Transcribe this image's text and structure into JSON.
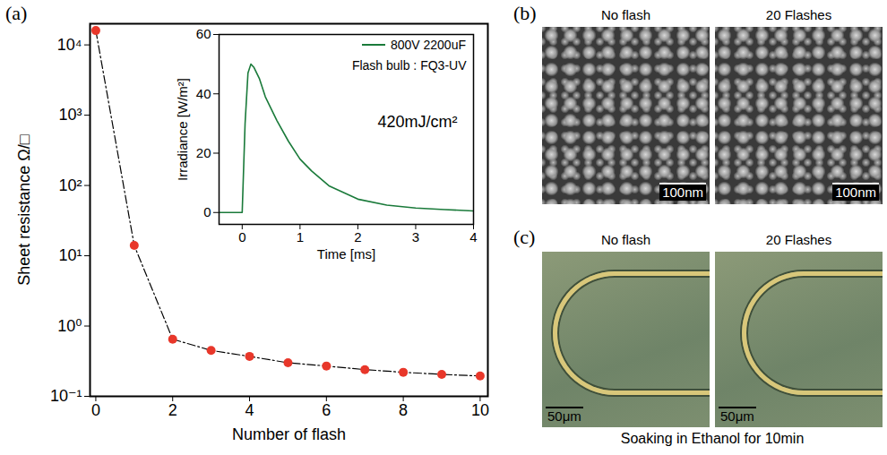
{
  "chart_data": [
    {
      "type": "line",
      "xlabel": "Number of flash",
      "ylabel": "Sheet resistance Ω/□",
      "x": [
        0,
        1,
        2,
        3,
        4,
        5,
        6,
        7,
        8,
        9,
        10
      ],
      "values": [
        16000,
        14,
        0.65,
        0.45,
        0.37,
        0.3,
        0.27,
        0.24,
        0.22,
        0.205,
        0.195
      ],
      "color": "#e8372a",
      "marker": "circle",
      "line_style": "dashdot",
      "log": "y",
      "xlim": [
        -0.15,
        10.2
      ],
      "xticks": [
        0,
        2,
        4,
        6,
        8,
        10
      ],
      "ylim": [
        0.1,
        20000
      ],
      "yticks": [
        {
          "value": 0.1,
          "label": "10⁻¹"
        },
        {
          "value": 1,
          "label": "10⁰"
        },
        {
          "value": 10,
          "label": "10¹"
        },
        {
          "value": 100,
          "label": "10²"
        },
        {
          "value": 1000,
          "label": "10³"
        },
        {
          "value": 10000,
          "label": "10⁴"
        }
      ]
    },
    {
      "type": "line",
      "xlabel": "Time [ms]",
      "ylabel": "Irradiance [W/m²]",
      "x": [
        -0.4,
        -0.2,
        0,
        0.05,
        0.1,
        0.15,
        0.2,
        0.3,
        0.4,
        0.5,
        0.6,
        0.8,
        1.0,
        1.2,
        1.5,
        2.0,
        2.5,
        3.0,
        3.5,
        4.0
      ],
      "series": [
        {
          "name": "800V 2200uF",
          "color": "#1a7a3a",
          "values": [
            0,
            0,
            0,
            30,
            47,
            50,
            49,
            45,
            39,
            35,
            31,
            24,
            18,
            14,
            9,
            4.5,
            2.5,
            1.5,
            1,
            0.5
          ]
        }
      ],
      "annotations": [
        "Flash bulb : FQ3-UV",
        "420mJ/cm²"
      ],
      "legend": "top-right",
      "xlim": [
        -0.4,
        4
      ],
      "xticks": [
        0,
        1,
        2,
        3,
        4
      ],
      "ylim": [
        -4,
        60
      ],
      "yticks": [
        0,
        20,
        40,
        60
      ]
    }
  ],
  "panels": {
    "a": {
      "label": "(a)"
    },
    "b": {
      "label": "(b)",
      "images": [
        {
          "title": "No flash",
          "scale_bar": "100nm"
        },
        {
          "title": "20 Flashes",
          "scale_bar": "100nm"
        }
      ]
    },
    "c": {
      "label": "(c)",
      "images": [
        {
          "title": "No flash",
          "scale_bar": "50μm"
        },
        {
          "title": "20 Flashes",
          "scale_bar": "50μm"
        }
      ],
      "caption": "Soaking in Ethanol for 10min"
    }
  }
}
